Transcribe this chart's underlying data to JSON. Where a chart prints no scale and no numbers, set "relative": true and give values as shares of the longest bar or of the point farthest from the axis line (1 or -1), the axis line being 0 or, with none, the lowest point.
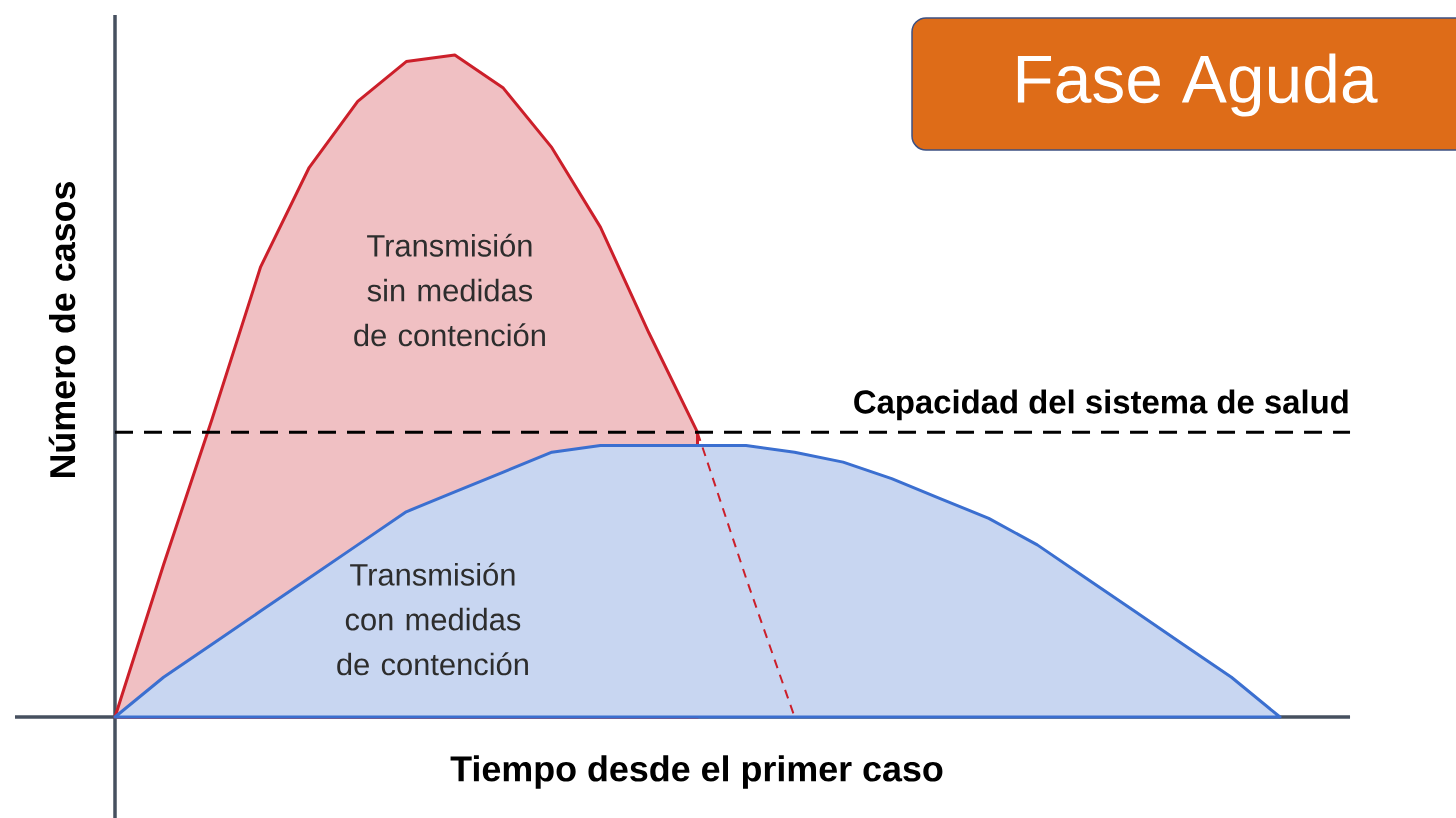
{
  "chart_data": {
    "type": "area",
    "title": "Fase Aguda",
    "xlabel": "Tiempo desde el primer caso",
    "ylabel": "Número de casos",
    "relative": true,
    "categories": [
      null,
      null,
      null,
      null,
      null,
      null,
      null,
      null,
      null,
      null,
      null,
      null,
      null,
      null,
      null,
      null,
      null,
      null,
      null,
      null,
      null,
      null,
      null,
      null,
      null
    ],
    "series": [
      {
        "name": "Transmisión sin medidas de contención",
        "color": "#cc1f2a",
        "values": [
          0,
          0.23,
          0.45,
          0.68,
          0.83,
          0.93,
          0.99,
          1.0,
          0.95,
          0.86,
          0.74,
          0.58,
          0.43,
          null,
          null,
          null,
          null,
          null,
          null,
          null,
          null,
          null,
          null,
          null,
          null
        ]
      },
      {
        "name": "Transmisión con medidas de contención",
        "color": "#3b6fd0",
        "values": [
          0,
          0.06,
          0.11,
          0.16,
          0.21,
          0.26,
          0.31,
          0.34,
          0.37,
          0.4,
          0.41,
          0.41,
          0.41,
          0.41,
          0.4,
          0.385,
          0.36,
          0.33,
          0.3,
          0.26,
          0.21,
          0.16,
          0.11,
          0.06,
          0
        ]
      },
      {
        "type": "line",
        "line_style": "dashed",
        "color": "#cc1f2a",
        "values": [
          null,
          null,
          null,
          null,
          null,
          null,
          null,
          null,
          null,
          null,
          null,
          null,
          0.43,
          0.21,
          0,
          null,
          null,
          null,
          null,
          null,
          null,
          null,
          null,
          null,
          null
        ]
      }
    ],
    "ref_lines": [
      {
        "axis": "y",
        "value": 0.43,
        "label": "Capacidad del sistema de salud",
        "color": "#000000",
        "line_style": "dashed"
      }
    ]
  }
}
